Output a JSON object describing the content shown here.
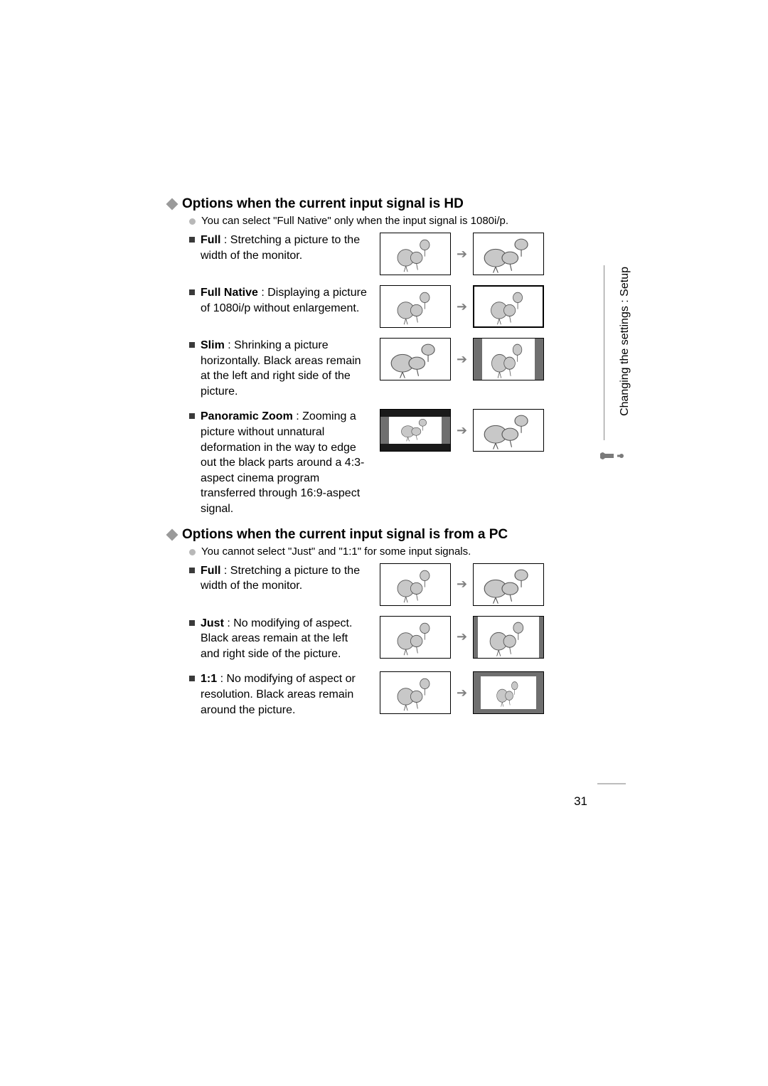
{
  "sideTab": {
    "label": "Changing the settings : Setup"
  },
  "pageNumber": "31",
  "colors": {
    "diamond": "#9a9a9a",
    "noteBullet": "#b8b8b8",
    "squareBullet": "#3a3a3a",
    "arrow": "#808080",
    "pillar": "#6f6f6f",
    "letterbox": "#1a1a1a",
    "balloonFill": "#c8c8c8",
    "balloonStroke": "#555555",
    "thumbBorder": "#000000",
    "background": "#ffffff"
  },
  "sections": [
    {
      "heading": "Options when the current input signal is HD",
      "note": "You can select \"Full Native\" only when the input signal is 1080i/p.",
      "items": [
        {
          "label": "Full",
          "desc": " : Stretching a picture to the width of the monitor.",
          "before": "normal",
          "after": "wide"
        },
        {
          "label": "Full Native",
          "desc": " : Displaying a picture of 1080i/p without enlargement.",
          "before": "normal",
          "after": "normal-thick"
        },
        {
          "label": "Slim",
          "desc": " : Shrinking a picture horizontally. Black areas remain at the left and right side of the picture.",
          "before": "wide",
          "after": "pillarbox"
        },
        {
          "label": "Panoramic Zoom",
          "desc": " : Zooming a picture without unnatural deformation in the way to edge out the black parts around a 4:3-aspect cinema program transferred through 16:9-aspect signal.",
          "before": "windowbox",
          "after": "wide"
        }
      ]
    },
    {
      "heading": "Options when the current input signal is from a PC",
      "note": "You cannot select \"Just\" and \"1:1\" for some input signals.",
      "items": [
        {
          "label": "Full",
          "desc": " : Stretching a picture to the width of the monitor.",
          "before": "normal",
          "after": "wide"
        },
        {
          "label": "Just",
          "desc": " : No modifying of aspect. Black areas remain at the left and right side of the picture.",
          "before": "normal",
          "after": "pillarbox-thin"
        },
        {
          "label": "1:1",
          "desc": " : No modifying of aspect or resolution. Black areas remain around the picture.",
          "before": "normal",
          "after": "allbox"
        }
      ]
    }
  ]
}
